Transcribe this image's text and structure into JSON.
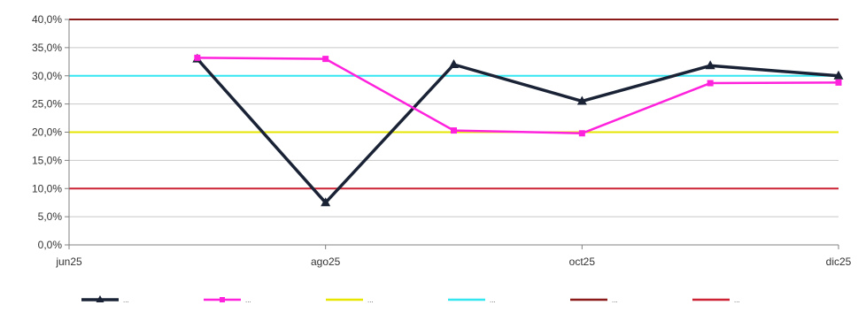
{
  "chart_data": {
    "type": "line",
    "title": "",
    "xlabel": "",
    "ylabel": "",
    "ylim": [
      0,
      40
    ],
    "y_ticks": [
      "0,0%",
      "5,0%",
      "10,0%",
      "15,0%",
      "20,0%",
      "25,0%",
      "30,0%",
      "35,0%",
      "40,0%"
    ],
    "x_ticks": [
      "jun25",
      "ago25",
      "oct25",
      "dic25"
    ],
    "x_range_months": [
      "jun25",
      "dic25"
    ],
    "grid": true,
    "legend_position": "bottom",
    "series": [
      {
        "name": "...",
        "color": "#1a2336",
        "style": "line-markers",
        "points": [
          {
            "x": "jul25",
            "y": 33.0
          },
          {
            "x": "ago25",
            "y": 7.5
          },
          {
            "x": "sep25",
            "y": 32.0
          },
          {
            "x": "oct25",
            "y": 25.5
          },
          {
            "x": "nov25",
            "y": 31.8
          },
          {
            "x": "dic25",
            "y": 30.0
          }
        ]
      },
      {
        "name": "...",
        "color": "#ff22dd",
        "style": "line-markers",
        "points": [
          {
            "x": "jul25",
            "y": 33.2
          },
          {
            "x": "ago25",
            "y": 33.0
          },
          {
            "x": "sep25",
            "y": 20.3
          },
          {
            "x": "oct25",
            "y": 19.8
          },
          {
            "x": "nov25",
            "y": 28.7
          },
          {
            "x": "dic25",
            "y": 28.8
          }
        ]
      },
      {
        "name": "...",
        "color": "#e6e600",
        "style": "reference",
        "value": 20
      },
      {
        "name": "...",
        "color": "#33e6f0",
        "style": "reference",
        "value": 30
      },
      {
        "name": "...",
        "color": "#8b1a1a",
        "style": "reference",
        "value": 40
      },
      {
        "name": "...",
        "color": "#cc2233",
        "style": "reference",
        "value": 10
      }
    ]
  }
}
